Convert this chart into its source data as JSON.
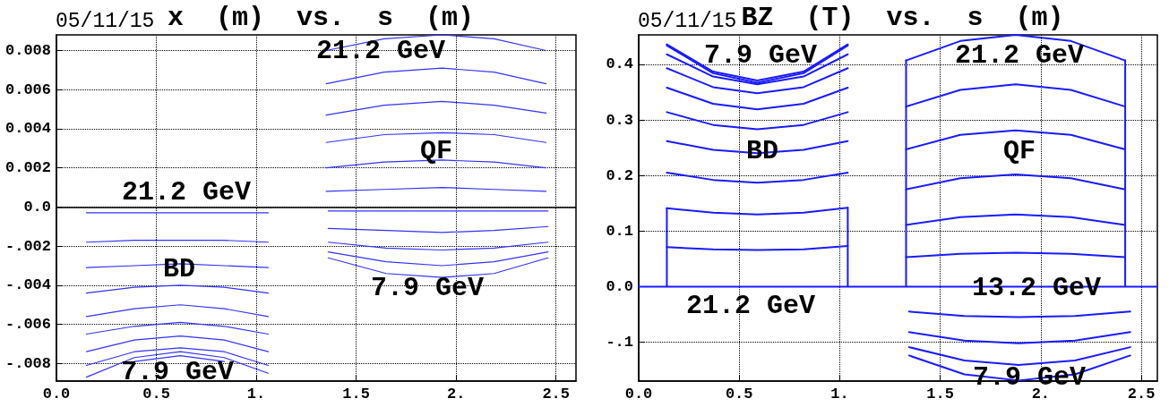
{
  "chart_data": [
    {
      "type": "line",
      "title": "x  (m)  vs.  s  (m)",
      "annotations": [
        "05/11/15",
        "21.2 GeV",
        "QF",
        "21.2 GeV",
        "BD",
        "7.9 GeV",
        "7.9 GeV"
      ],
      "xlim": [
        0,
        2.6
      ],
      "ylim": [
        -0.0089,
        0.0088
      ],
      "xticks": [
        {
          "value": 0,
          "label": "0.0"
        },
        0.5,
        {
          "value": 1,
          "label": "1."
        },
        1.5,
        {
          "value": 2,
          "label": "2."
        },
        2.5
      ],
      "yticks": [
        {
          "value": -0.008,
          "label": "-.008"
        },
        {
          "value": -0.006,
          "label": "-.006"
        },
        {
          "value": -0.004,
          "label": "-.004"
        },
        {
          "value": -0.002,
          "label": "-.002"
        },
        {
          "value": 0,
          "label": "0.0"
        },
        0.002,
        0.004,
        0.006,
        0.008
      ],
      "grid": true,
      "marker": "none",
      "line_style": "solid",
      "ref_lines": [
        {
          "axis": "y",
          "value": 0,
          "color": "#000000"
        }
      ],
      "series": [
        {
          "color": "#3333ff",
          "x": [
            1.35,
            1.64,
            1.93,
            2.19,
            2.45
          ],
          "values": [
            0.008,
            0.0086,
            0.0088,
            0.0086,
            0.008
          ]
        },
        {
          "color": "#3333ff",
          "x": [
            1.35,
            1.64,
            1.93,
            2.19,
            2.45
          ],
          "values": [
            0.0063,
            0.0069,
            0.0071,
            0.0069,
            0.0063
          ]
        },
        {
          "color": "#3333ff",
          "x": [
            1.35,
            1.64,
            1.93,
            2.19,
            2.45
          ],
          "values": [
            0.0047,
            0.0052,
            0.0054,
            0.0052,
            0.0048
          ]
        },
        {
          "color": "#3333ff",
          "x": [
            1.35,
            1.64,
            1.93,
            2.19,
            2.45
          ],
          "values": [
            0.0033,
            0.0037,
            0.0038,
            0.0037,
            0.0033
          ]
        },
        {
          "color": "#3333ff",
          "x": [
            1.35,
            1.64,
            1.93,
            2.19,
            2.45
          ],
          "values": [
            0.002,
            0.0023,
            0.0024,
            0.0023,
            0.002
          ]
        },
        {
          "color": "#3333ff",
          "x": [
            1.35,
            1.64,
            1.93,
            2.19,
            2.45
          ],
          "values": [
            0.0008,
            0.0009,
            0.001,
            0.0009,
            0.0008
          ]
        },
        {
          "color": "#3333ff",
          "x": [
            1.36,
            1.65,
            1.93,
            2.19,
            2.46
          ],
          "values": [
            -0.0002,
            -0.0002,
            -0.0002,
            -0.0002,
            -0.0002
          ]
        },
        {
          "color": "#3333ff",
          "x": [
            1.36,
            1.65,
            1.93,
            2.19,
            2.46
          ],
          "values": [
            -0.0011,
            -0.0012,
            -0.0013,
            -0.0012,
            -0.001
          ]
        },
        {
          "color": "#3333ff",
          "x": [
            1.36,
            1.65,
            1.93,
            2.19,
            2.46
          ],
          "values": [
            -0.0018,
            -0.0021,
            -0.0022,
            -0.0021,
            -0.0018
          ]
        },
        {
          "color": "#3333ff",
          "x": [
            1.36,
            1.65,
            1.93,
            2.19,
            2.46
          ],
          "values": [
            -0.0023,
            -0.0028,
            -0.003,
            -0.0028,
            -0.0023
          ]
        },
        {
          "color": "#3333ff",
          "x": [
            1.36,
            1.65,
            1.93,
            2.19,
            2.46
          ],
          "values": [
            -0.0026,
            -0.0034,
            -0.0036,
            -0.0034,
            -0.0026
          ]
        },
        {
          "color": "#3333ff",
          "x": [
            0.15,
            0.39,
            0.62,
            0.84,
            1.06
          ],
          "values": [
            -0.0003,
            -0.0003,
            -0.0003,
            -0.0003,
            -0.0003
          ]
        },
        {
          "color": "#3333ff",
          "x": [
            0.15,
            0.39,
            0.62,
            0.84,
            1.06
          ],
          "values": [
            -0.0018,
            -0.0017,
            -0.0017,
            -0.0017,
            -0.0018
          ]
        },
        {
          "color": "#3333ff",
          "x": [
            0.15,
            0.39,
            0.62,
            0.84,
            1.06
          ],
          "values": [
            -0.0031,
            -0.003,
            -0.0029,
            -0.003,
            -0.0031
          ]
        },
        {
          "color": "#3333ff",
          "x": [
            0.15,
            0.39,
            0.62,
            0.84,
            1.06
          ],
          "values": [
            -0.0044,
            -0.0041,
            -0.004,
            -0.0041,
            -0.0044
          ]
        },
        {
          "color": "#3333ff",
          "x": [
            0.15,
            0.39,
            0.62,
            0.84,
            1.06
          ],
          "values": [
            -0.0056,
            -0.0052,
            -0.005,
            -0.0052,
            -0.0056
          ]
        },
        {
          "color": "#3333ff",
          "x": [
            0.15,
            0.39,
            0.62,
            0.84,
            1.06
          ],
          "values": [
            -0.0065,
            -0.0061,
            -0.0059,
            -0.0061,
            -0.0065
          ]
        },
        {
          "color": "#3333ff",
          "x": [
            0.15,
            0.39,
            0.62,
            0.84,
            1.06
          ],
          "values": [
            -0.0074,
            -0.0068,
            -0.0066,
            -0.0068,
            -0.0074
          ]
        },
        {
          "color": "#3333ff",
          "x": [
            0.15,
            0.39,
            0.62,
            0.84,
            1.06
          ],
          "values": [
            -0.0081,
            -0.0074,
            -0.0072,
            -0.0074,
            -0.0081
          ]
        },
        {
          "color": "#3333ff",
          "x": [
            0.15,
            0.39,
            0.62,
            0.84,
            1.06
          ],
          "values": [
            -0.0087,
            -0.0077,
            -0.0074,
            -0.0077,
            -0.0085
          ]
        },
        {
          "color": "#3333ff",
          "x": [
            0.39,
            0.62,
            0.84
          ],
          "values": [
            -0.0079,
            -0.0076,
            -0.0079
          ]
        }
      ]
    },
    {
      "type": "line",
      "title": "BZ  (T)  vs.  s  (m)",
      "annotations": [
        "05/11/15",
        "7.9 GeV",
        "21.2 GeV",
        "BD",
        "QF",
        "21.2 GeV",
        "13.2 GeV",
        "7.9 GeV"
      ],
      "xlim": [
        0,
        2.58
      ],
      "ylim": [
        -0.17,
        0.453
      ],
      "xticks": [
        {
          "value": 0,
          "label": "0.0"
        },
        0.5,
        {
          "value": 1,
          "label": "1."
        },
        1.5,
        {
          "value": 2,
          "label": "2."
        },
        2.5
      ],
      "yticks": [
        {
          "value": -0.1,
          "label": "-.1"
        },
        {
          "value": 0,
          "label": "0.0"
        },
        0.1,
        0.2,
        0.3,
        0.4
      ],
      "grid": true,
      "marker": "none",
      "line_style": "solid",
      "series": [
        {
          "color": "#1a1aff",
          "x": [
            0,
            0.14,
            0.14,
            0.14,
            1.04,
            1.04,
            1.04,
            1.33,
            1.33,
            1.33,
            2.42,
            2.42,
            2.42,
            2.58
          ],
          "values": [
            0,
            0,
            0.141,
            0,
            0,
            0.142,
            0,
            0,
            0.407,
            0,
            0,
            0.407,
            0,
            0
          ]
        },
        {
          "color": "#1a1aff",
          "x": [
            0.14,
            0.37,
            0.59,
            0.82,
            1.04
          ],
          "values": [
            0.436,
            0.387,
            0.371,
            0.387,
            0.436
          ]
        },
        {
          "color": "#1a1aff",
          "x": [
            0.14,
            0.37,
            0.59,
            0.82,
            1.04
          ],
          "values": [
            0.434,
            0.384,
            0.367,
            0.384,
            0.434
          ]
        },
        {
          "color": "#1a1aff",
          "x": [
            0.14,
            0.37,
            0.59,
            0.82,
            1.04
          ],
          "values": [
            0.418,
            0.378,
            0.364,
            0.378,
            0.418
          ]
        },
        {
          "color": "#1a1aff",
          "x": [
            0.14,
            0.37,
            0.59,
            0.82,
            1.04
          ],
          "values": [
            0.393,
            0.359,
            0.348,
            0.359,
            0.393
          ]
        },
        {
          "color": "#1a1aff",
          "x": [
            0.14,
            0.37,
            0.59,
            0.82,
            1.04
          ],
          "values": [
            0.358,
            0.329,
            0.319,
            0.329,
            0.358
          ]
        },
        {
          "color": "#1a1aff",
          "x": [
            0.14,
            0.37,
            0.59,
            0.82,
            1.04
          ],
          "values": [
            0.314,
            0.291,
            0.283,
            0.291,
            0.314
          ]
        },
        {
          "color": "#1a1aff",
          "x": [
            0.14,
            0.37,
            0.59,
            0.82,
            1.04
          ],
          "values": [
            0.262,
            0.246,
            0.24,
            0.246,
            0.262
          ]
        },
        {
          "color": "#1a1aff",
          "x": [
            0.14,
            0.37,
            0.59,
            0.82,
            1.04
          ],
          "values": [
            0.205,
            0.192,
            0.187,
            0.192,
            0.205
          ]
        },
        {
          "color": "#1a1aff",
          "x": [
            0.14,
            0.37,
            0.59,
            0.82,
            1.04
          ],
          "values": [
            0.141,
            0.133,
            0.13,
            0.133,
            0.142
          ]
        },
        {
          "color": "#1a1aff",
          "x": [
            0.14,
            0.37,
            0.59,
            0.82,
            1.04
          ],
          "values": [
            0.071,
            0.067,
            0.066,
            0.067,
            0.073
          ]
        },
        {
          "color": "#1a1aff",
          "x": [
            1.33,
            1.6,
            1.875,
            2.15,
            2.42
          ],
          "values": [
            0.407,
            0.442,
            0.453,
            0.442,
            0.407
          ]
        },
        {
          "color": "#1a1aff",
          "x": [
            1.33,
            1.6,
            1.875,
            2.15,
            2.42
          ],
          "values": [
            0.324,
            0.354,
            0.364,
            0.354,
            0.324
          ]
        },
        {
          "color": "#1a1aff",
          "x": [
            1.33,
            1.6,
            1.875,
            2.15,
            2.42
          ],
          "values": [
            0.247,
            0.273,
            0.281,
            0.273,
            0.247
          ]
        },
        {
          "color": "#1a1aff",
          "x": [
            1.33,
            1.6,
            1.875,
            2.15,
            2.42
          ],
          "values": [
            0.175,
            0.195,
            0.202,
            0.195,
            0.175
          ]
        },
        {
          "color": "#1a1aff",
          "x": [
            1.33,
            1.6,
            1.875,
            2.15,
            2.42
          ],
          "values": [
            0.111,
            0.125,
            0.13,
            0.125,
            0.111
          ]
        },
        {
          "color": "#1a1aff",
          "x": [
            1.33,
            1.6,
            1.875,
            2.15,
            2.42
          ],
          "values": [
            0.053,
            0.059,
            0.061,
            0.059,
            0.053
          ]
        },
        {
          "color": "#1a1aff",
          "x": [
            1.345,
            1.62,
            1.89,
            2.17,
            2.445
          ],
          "values": [
            -0.045,
            -0.053,
            -0.055,
            -0.053,
            -0.045
          ]
        },
        {
          "color": "#1a1aff",
          "x": [
            1.345,
            1.62,
            1.89,
            2.17,
            2.445
          ],
          "values": [
            -0.082,
            -0.097,
            -0.102,
            -0.097,
            -0.082
          ]
        },
        {
          "color": "#1a1aff",
          "x": [
            1.345,
            1.62,
            1.89,
            2.17,
            2.445
          ],
          "values": [
            -0.109,
            -0.133,
            -0.141,
            -0.133,
            -0.109
          ]
        },
        {
          "color": "#1a1aff",
          "x": [
            1.345,
            1.62,
            1.89,
            2.17,
            2.445
          ],
          "values": [
            -0.124,
            -0.158,
            -0.169,
            -0.158,
            -0.124
          ]
        }
      ]
    }
  ]
}
